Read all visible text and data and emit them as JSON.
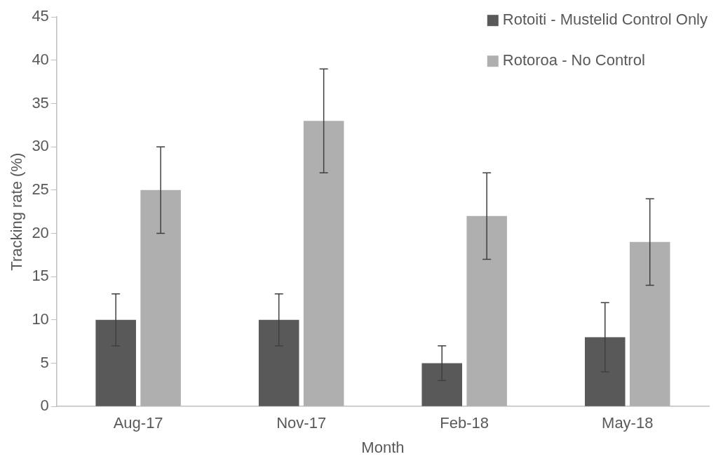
{
  "chart_data": {
    "type": "bar",
    "xlabel": "Month",
    "ylabel": "Tracking rate (%)",
    "categories": [
      "Aug-17",
      "Nov-17",
      "Feb-18",
      "May-18"
    ],
    "series": [
      {
        "name": "Rotoiti - Mustelid Control Only",
        "color": "#595959",
        "values": [
          10,
          10,
          5,
          8
        ],
        "errors": [
          3,
          3,
          2,
          4
        ]
      },
      {
        "name": "Rotoroa - No Control",
        "color": "#afafaf",
        "values": [
          25,
          33,
          22,
          19
        ],
        "errors": [
          5,
          6,
          5,
          5
        ]
      }
    ],
    "ylim": [
      0,
      45
    ],
    "yticks": [
      0,
      5,
      10,
      15,
      20,
      25,
      30,
      35,
      40,
      45
    ],
    "grid": false,
    "legend": "top right"
  }
}
